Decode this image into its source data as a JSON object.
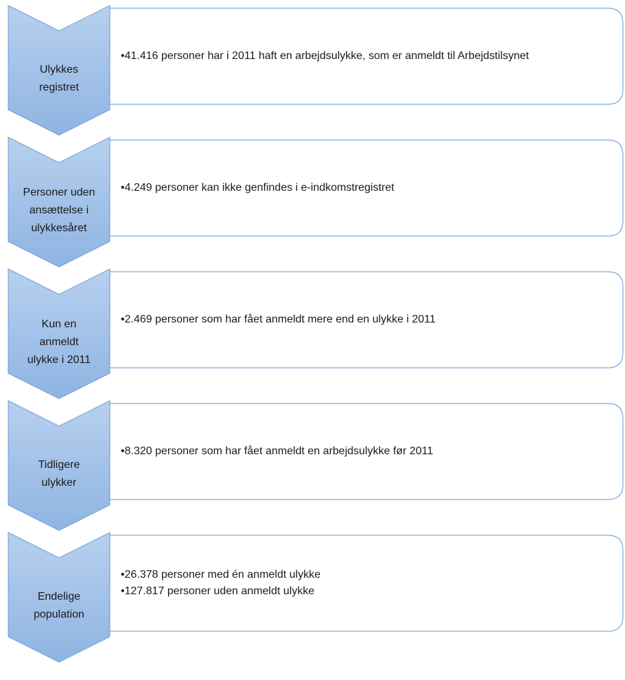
{
  "steps": [
    {
      "label_lines": [
        "Ulykkes",
        "registret"
      ],
      "bullets": [
        "41.416 personer har i 2011 haft en arbejdsulykke, som er anmeldt til Arbejdstilsynet"
      ]
    },
    {
      "label_lines": [
        "Personer uden",
        "ansættelse i",
        "ulykkesåret"
      ],
      "bullets": [
        "4.249 personer kan ikke genfindes i e-indkomstregistret"
      ]
    },
    {
      "label_lines": [
        "Kun en",
        "anmeldt",
        "ulykke i 2011"
      ],
      "bullets": [
        "2.469 personer som har fået anmeldt mere end en ulykke i 2011"
      ]
    },
    {
      "label_lines": [
        "Tidligere",
        "ulykker"
      ],
      "bullets": [
        "8.320 personer som har fået anmeldt en arbejdsulykke før 2011"
      ]
    },
    {
      "label_lines": [
        "Endelige",
        "population"
      ],
      "bullets": [
        "26.378 personer med én anmeldt ulykke",
        "127.817 personer uden anmeldt ulykke"
      ]
    }
  ]
}
